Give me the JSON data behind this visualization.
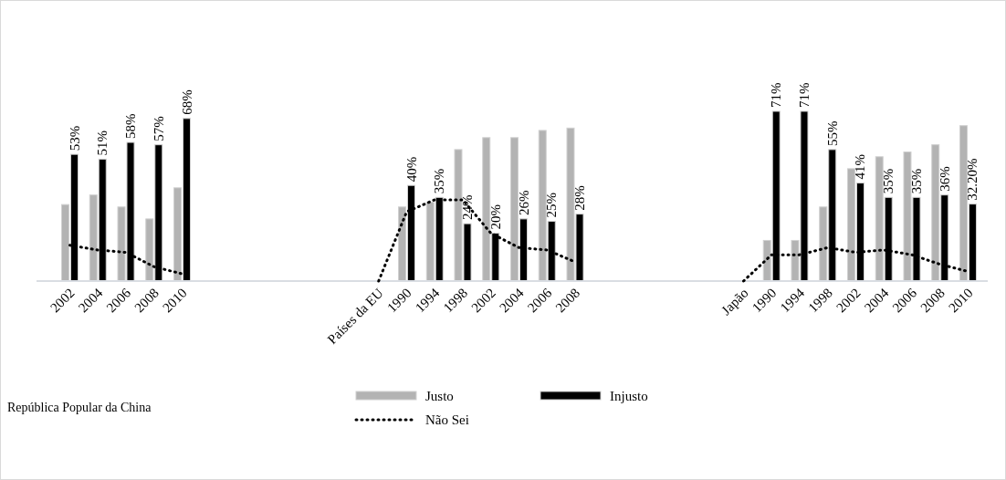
{
  "chart_data": {
    "type": "bar",
    "categories": [
      "2002",
      "2004",
      "2006",
      "2008",
      "2010",
      null,
      null,
      null,
      null,
      null,
      null,
      "Países da EU",
      "1990",
      "1994",
      "1998",
      "2002",
      "2004",
      "2006",
      "2008",
      null,
      null,
      null,
      null,
      null,
      "Japão",
      "1990",
      "1994",
      "1998",
      "2002",
      "2004",
      "2006",
      "2008",
      "2010"
    ],
    "tick_labels": "x",
    "legend": "bottom",
    "annotations": [
      "República Popular da China"
    ],
    "series": [
      {
        "name": "Justo",
        "color": "#b3b3b3",
        "values": [
          32,
          36,
          31,
          26,
          39,
          null,
          null,
          null,
          null,
          null,
          null,
          null,
          31,
          33,
          55,
          60,
          60,
          63,
          64,
          null,
          null,
          null,
          null,
          null,
          null,
          17,
          17,
          31,
          47,
          52,
          54,
          57,
          65
        ]
      },
      {
        "name": "Injusto",
        "color": "#000000",
        "values": [
          53,
          51,
          58,
          57,
          68,
          null,
          null,
          null,
          null,
          null,
          null,
          null,
          40,
          35,
          24,
          20,
          26,
          25,
          28,
          null,
          null,
          null,
          null,
          null,
          null,
          71,
          71,
          55,
          41,
          35,
          35,
          36,
          32.2
        ],
        "value_labels": [
          "53%",
          "51%",
          "58%",
          "57%",
          "68%",
          null,
          null,
          null,
          null,
          null,
          null,
          null,
          "40%",
          "35%",
          "24%",
          "20%",
          "26%",
          "25%",
          "28%",
          null,
          null,
          null,
          null,
          null,
          null,
          "71%",
          "71%",
          "55%",
          "41%",
          "35%",
          "35%",
          "36%",
          "32.20%"
        ]
      },
      {
        "name": "Não Sei",
        "type": "line",
        "color": "#000000",
        "line_style": "dotted",
        "values": [
          15,
          13,
          12,
          6,
          3,
          null,
          null,
          null,
          null,
          null,
          null,
          0,
          29,
          34,
          34,
          20,
          14,
          13,
          8,
          null,
          null,
          null,
          null,
          null,
          0,
          11,
          11,
          14,
          12,
          13,
          11,
          7,
          4
        ]
      }
    ]
  }
}
